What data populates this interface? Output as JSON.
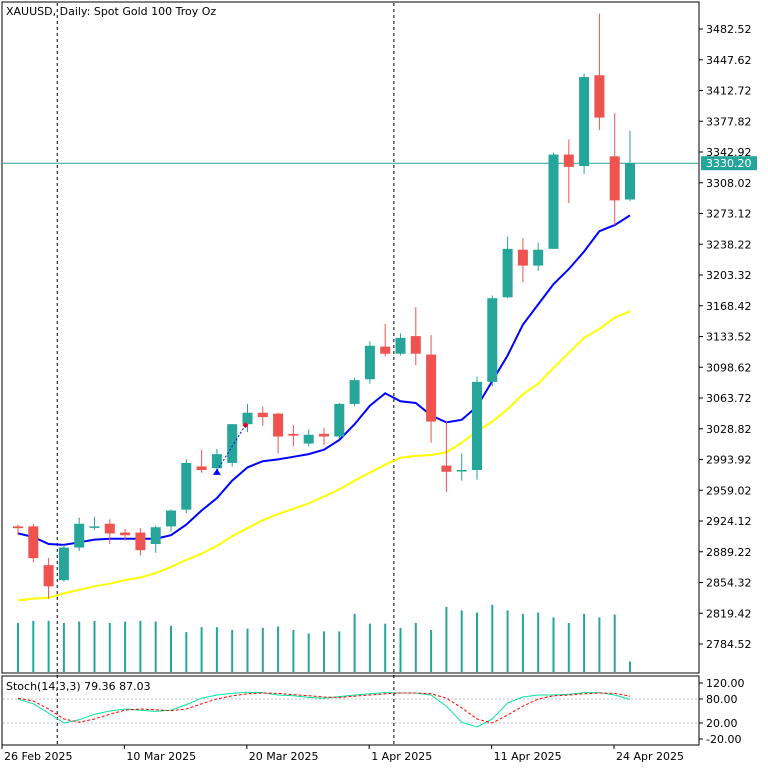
{
  "chart_data": {
    "type": "candlestick",
    "symbol": "XAUUSD",
    "title": "XAUUSD, Daily:  Spot Gold 100 Troy Oz",
    "current_price": 3330.2,
    "current_price_label": "3330.20",
    "y_ticks": [
      "3482.52",
      "3447.62",
      "3412.72",
      "3377.82",
      "3342.92",
      "3308.02",
      "3273.12",
      "3238.22",
      "3203.32",
      "3168.42",
      "3133.52",
      "3098.62",
      "3063.72",
      "3028.82",
      "2993.92",
      "2959.02",
      "2924.12",
      "2889.22",
      "2854.32",
      "2819.42",
      "2784.52"
    ],
    "x_labels": [
      {
        "label": "26 Feb 2025",
        "index": 0
      },
      {
        "label": "10 Mar 2025",
        "index": 8
      },
      {
        "label": "20 Mar 2025",
        "index": 16
      },
      {
        "label": "1 Apr 2025",
        "index": 24
      },
      {
        "label": "11 Apr 2025",
        "index": 32
      },
      {
        "label": "24 Apr 2025",
        "index": 40
      }
    ],
    "separators": [
      2,
      24
    ],
    "candles": [
      {
        "o": 2918,
        "h": 2920,
        "l": 2908,
        "c": 2916
      },
      {
        "o": 2918,
        "h": 2921,
        "l": 2877,
        "c": 2882
      },
      {
        "o": 2874,
        "h": 2882,
        "l": 2836,
        "c": 2850
      },
      {
        "o": 2857,
        "h": 2897,
        "l": 2855,
        "c": 2894
      },
      {
        "o": 2894,
        "h": 2928,
        "l": 2890,
        "c": 2921
      },
      {
        "o": 2917,
        "h": 2929,
        "l": 2914,
        "c": 2918
      },
      {
        "o": 2921,
        "h": 2926,
        "l": 2898,
        "c": 2910
      },
      {
        "o": 2911,
        "h": 2915,
        "l": 2902,
        "c": 2908
      },
      {
        "o": 2911,
        "h": 2916,
        "l": 2885,
        "c": 2891
      },
      {
        "o": 2898,
        "h": 2919,
        "l": 2888,
        "c": 2917
      },
      {
        "o": 2918,
        "h": 2937,
        "l": 2912,
        "c": 2936
      },
      {
        "o": 2937,
        "h": 2994,
        "l": 2933,
        "c": 2990
      },
      {
        "o": 2986,
        "h": 3005,
        "l": 2979,
        "c": 2982
      },
      {
        "o": 2984,
        "h": 3006,
        "l": 2981,
        "c": 3000
      },
      {
        "o": 2990,
        "h": 3034,
        "l": 2986,
        "c": 3034
      },
      {
        "o": 3034,
        "h": 3057,
        "l": 3025,
        "c": 3047
      },
      {
        "o": 3047,
        "h": 3054,
        "l": 3032,
        "c": 3042
      },
      {
        "o": 3046,
        "h": 3047,
        "l": 3001,
        "c": 3020
      },
      {
        "o": 3023,
        "h": 3033,
        "l": 3009,
        "c": 3021
      },
      {
        "o": 3012,
        "h": 3028,
        "l": 3009,
        "c": 3022
      },
      {
        "o": 3023,
        "h": 3030,
        "l": 3010,
        "c": 3020
      },
      {
        "o": 3020,
        "h": 3058,
        "l": 3018,
        "c": 3057
      },
      {
        "o": 3057,
        "h": 3087,
        "l": 3054,
        "c": 3084
      },
      {
        "o": 3085,
        "h": 3128,
        "l": 3080,
        "c": 3123
      },
      {
        "o": 3122,
        "h": 3148,
        "l": 3111,
        "c": 3114
      },
      {
        "o": 3114,
        "h": 3137,
        "l": 3112,
        "c": 3132
      },
      {
        "o": 3134,
        "h": 3167,
        "l": 3101,
        "c": 3114
      },
      {
        "o": 3113,
        "h": 3135,
        "l": 3013,
        "c": 3037
      },
      {
        "o": 2987,
        "h": 3038,
        "l": 2957,
        "c": 2980
      },
      {
        "o": 2982,
        "h": 3001,
        "l": 2970,
        "c": 2982
      },
      {
        "o": 2982,
        "h": 3088,
        "l": 2971,
        "c": 3082
      },
      {
        "o": 3082,
        "h": 3180,
        "l": 3077,
        "c": 3177
      },
      {
        "o": 3178,
        "h": 3247,
        "l": 3177,
        "c": 3233
      },
      {
        "o": 3232,
        "h": 3245,
        "l": 3195,
        "c": 3214
      },
      {
        "o": 3214,
        "h": 3240,
        "l": 3208,
        "c": 3232
      },
      {
        "o": 3233,
        "h": 3342,
        "l": 3233,
        "c": 3340
      },
      {
        "o": 3340,
        "h": 3357,
        "l": 3285,
        "c": 3326
      },
      {
        "o": 3327,
        "h": 3432,
        "l": 3318,
        "c": 3428
      },
      {
        "o": 3430,
        "h": 3500,
        "l": 3368,
        "c": 3382
      },
      {
        "o": 3338,
        "h": 3387,
        "l": 3260,
        "c": 3288
      },
      {
        "o": 3289,
        "h": 3367,
        "l": 3287,
        "c": 3330
      }
    ],
    "ma_fast": [
      2910,
      2906,
      2898,
      2897,
      2900,
      2903,
      2904,
      2904,
      2904,
      2904,
      2908,
      2920,
      2936,
      2950,
      2970,
      2985,
      2992,
      2994,
      2997,
      3000,
      3005,
      3016,
      3034,
      3055,
      3069,
      3060,
      3058,
      3044,
      3036,
      3039,
      3054,
      3083,
      3112,
      3147,
      3170,
      3193,
      3210,
      3230,
      3253,
      3260,
      3271
    ],
    "ma_slow": [
      2834,
      2836,
      2837,
      2842,
      2846,
      2850,
      2853,
      2857,
      2860,
      2865,
      2872,
      2880,
      2887,
      2896,
      2907,
      2916,
      2925,
      2932,
      2938,
      2944,
      2952,
      2960,
      2970,
      2979,
      2988,
      2996,
      2998,
      2999,
      3002,
      3013,
      3026,
      3037,
      3051,
      3068,
      3080,
      3098,
      3115,
      3132,
      3142,
      3155,
      3162
    ],
    "volumes": [
      0.7,
      0.73,
      0.73,
      0.7,
      0.72,
      0.73,
      0.7,
      0.72,
      0.73,
      0.72,
      0.66,
      0.57,
      0.64,
      0.64,
      0.6,
      0.62,
      0.63,
      0.65,
      0.6,
      0.55,
      0.58,
      0.58,
      0.83,
      0.69,
      0.69,
      0.63,
      0.7,
      0.6,
      0.93,
      0.88,
      0.85,
      0.96,
      0.88,
      0.83,
      0.85,
      0.78,
      0.7,
      0.83,
      0.78,
      0.82,
      0.15
    ],
    "stoch": {
      "label": "Stoch(14,3,3) 79.36 87.03",
      "main": 79.36,
      "signal": 87.03,
      "ticks": [
        "120.00",
        "80.00",
        "20.00",
        "-20.00"
      ],
      "main_line": [
        80,
        68,
        45,
        20,
        28,
        42,
        50,
        55,
        52,
        49,
        52,
        66,
        82,
        90,
        94,
        97,
        96,
        90,
        88,
        84,
        82,
        86,
        90,
        93,
        96,
        95,
        95,
        90,
        62,
        22,
        10,
        30,
        70,
        85,
        90,
        90,
        92,
        96,
        96,
        90,
        79
      ],
      "signal_line": [
        82,
        75,
        55,
        30,
        22,
        30,
        42,
        52,
        55,
        53,
        51,
        55,
        68,
        80,
        88,
        93,
        95,
        94,
        91,
        88,
        85,
        84,
        87,
        90,
        93,
        95,
        95,
        93,
        82,
        58,
        30,
        20,
        40,
        62,
        80,
        88,
        90,
        93,
        95,
        94,
        87
      ]
    },
    "colors": {
      "bull": "#26a69a",
      "bear": "#ef5350",
      "ma_fast": "#0000ff",
      "ma_slow": "#ffff00",
      "stoch_main": "#00e5a0",
      "stoch_signal": "#ff0000",
      "price_line": "#26a69a",
      "arrow_buy": "#0000ff",
      "arrow_sell": "#ff0000"
    }
  }
}
